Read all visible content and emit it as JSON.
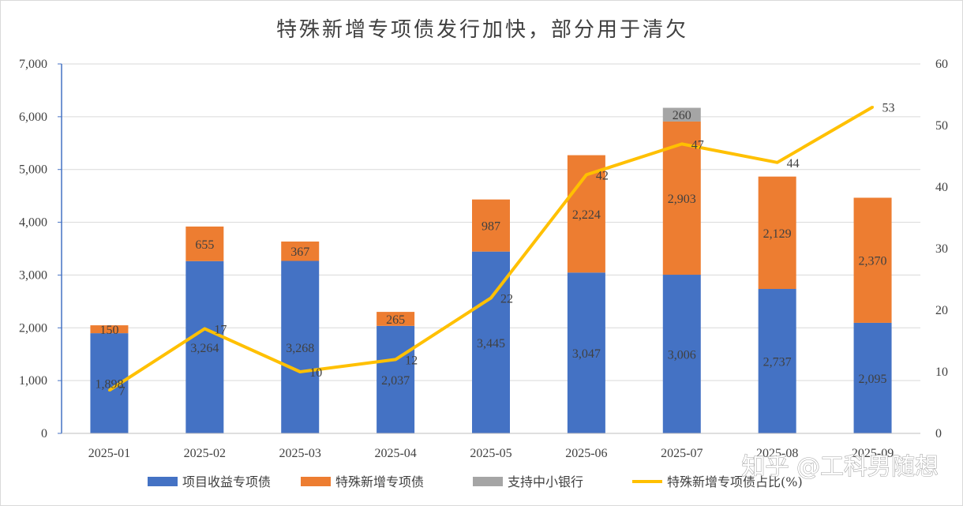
{
  "watermark": "知乎 @工科男随想",
  "chart_data": {
    "type": "bar",
    "title": "特殊新增专项债发行加快，部分用于清欠",
    "categories": [
      "2025-01",
      "2025-02",
      "2025-03",
      "2025-04",
      "2025-05",
      "2025-06",
      "2025-07",
      "2025-08",
      "2025-09"
    ],
    "series": [
      {
        "name": "项目收益专项债",
        "type": "bar",
        "stack": "total",
        "color": "#4472c4",
        "axis": "left",
        "values": [
          1898,
          3264,
          3268,
          2037,
          3445,
          3047,
          3006,
          2737,
          2095
        ],
        "labels": [
          "1,898",
          "3,264",
          "3,268",
          "2,037",
          "3,445",
          "3,047",
          "3,006",
          "2,737",
          "2,095"
        ]
      },
      {
        "name": "特殊新增专项债",
        "type": "bar",
        "stack": "total",
        "color": "#ed7d31",
        "axis": "left",
        "values": [
          150,
          655,
          367,
          265,
          987,
          2224,
          2903,
          2129,
          2370
        ],
        "labels": [
          "150",
          "655",
          "367",
          "265",
          "987",
          "2,224",
          "2,903",
          "2,129",
          "2,370"
        ]
      },
      {
        "name": "支持中小银行",
        "type": "bar",
        "stack": "total",
        "color": "#a5a5a5",
        "axis": "left",
        "values": [
          0,
          0,
          0,
          0,
          0,
          0,
          260,
          0,
          0
        ],
        "labels": [
          "",
          "",
          "",
          "",
          "",
          "",
          "260",
          "",
          ""
        ]
      },
      {
        "name": "特殊新增专项债占比(%)",
        "type": "line",
        "color": "#ffc000",
        "axis": "right",
        "values": [
          7,
          17,
          10,
          12,
          22,
          42,
          47,
          44,
          53
        ],
        "labels": [
          "7",
          "17",
          "10",
          "12",
          "22",
          "42",
          "47",
          "44",
          "53"
        ]
      }
    ],
    "y_left": {
      "min": 0,
      "max": 7000,
      "ticks": [
        "0",
        "1,000",
        "2,000",
        "3,000",
        "4,000",
        "5,000",
        "6,000",
        "7,000"
      ]
    },
    "y_right": {
      "min": 0,
      "max": 60,
      "ticks": [
        "0",
        "10",
        "20",
        "30",
        "40",
        "50",
        "60"
      ]
    },
    "grid": true,
    "legend_position": "bottom"
  }
}
